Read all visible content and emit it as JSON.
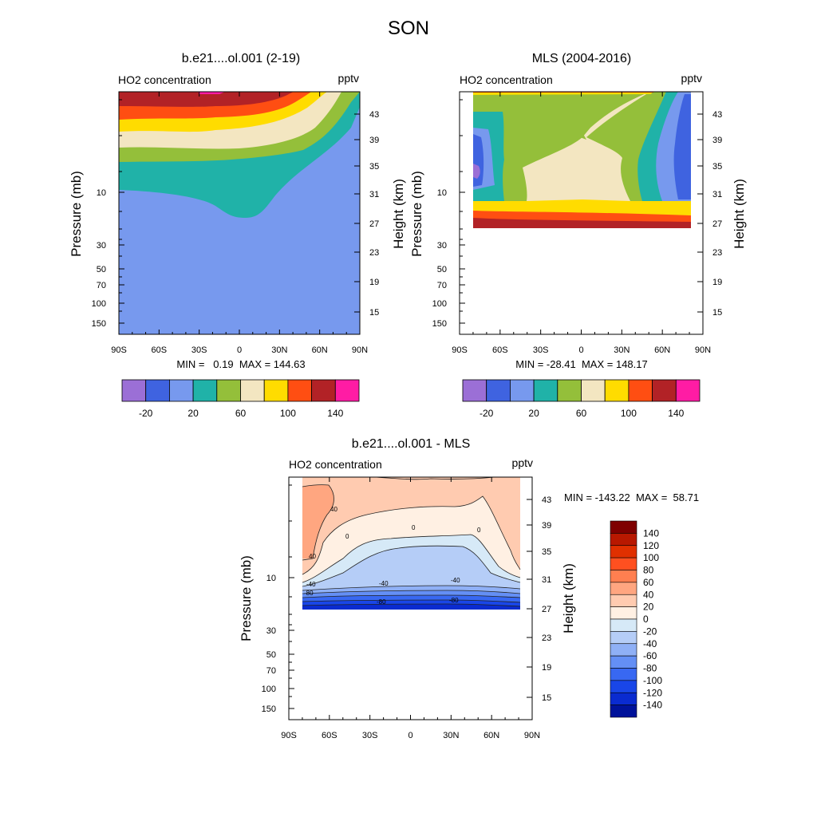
{
  "title": "SON",
  "chart_data": [
    {
      "type": "contour",
      "title": "b.e21....ol.001 (2-19)",
      "left_label": "HO2 concentration",
      "right_label": "pptv",
      "ylabel": "Pressure (mb)",
      "ylabel_right": "Height (km)",
      "xlim": [
        -90,
        90
      ],
      "x_ticks": [
        "90S",
        "60S",
        "30S",
        "0",
        "30N",
        "60N",
        "90N"
      ],
      "pressure_ticks": [
        "10",
        "30",
        "50",
        "70",
        "100",
        "150"
      ],
      "height_ticks": [
        "43",
        "39",
        "35",
        "31",
        "27",
        "23",
        "19",
        "15"
      ],
      "stats": "MIN =   0.19  MAX = 144.63",
      "colorbar": {
        "orientation": "horizontal",
        "colors": [
          "#9b6fd6",
          "#3f63e0",
          "#7799ee",
          "#20b2a8",
          "#94bf3a",
          "#f3e6c1",
          "#ffdc00",
          "#ff4e12",
          "#b22226",
          "#ff1ca4"
        ],
        "labels": [
          "-20",
          "20",
          "60",
          "100",
          "140"
        ]
      }
    },
    {
      "type": "contour",
      "title": "MLS (2004-2016)",
      "left_label": "HO2 concentration",
      "right_label": "pptv",
      "ylabel": "Pressure (mb)",
      "ylabel_right": "Height (km)",
      "xlim": [
        -90,
        90
      ],
      "x_ticks": [
        "90S",
        "60S",
        "30S",
        "0",
        "30N",
        "60N",
        "90N"
      ],
      "pressure_ticks": [
        "10",
        "30",
        "50",
        "70",
        "100",
        "150"
      ],
      "height_ticks": [
        "43",
        "39",
        "35",
        "31",
        "27",
        "23",
        "19",
        "15"
      ],
      "stats": "MIN = -28.41  MAX = 148.17",
      "colorbar": {
        "orientation": "horizontal",
        "colors": [
          "#9b6fd6",
          "#3f63e0",
          "#7799ee",
          "#20b2a8",
          "#94bf3a",
          "#f3e6c1",
          "#ffdc00",
          "#ff4e12",
          "#b22226",
          "#ff1ca4"
        ],
        "labels": [
          "-20",
          "20",
          "60",
          "100",
          "140"
        ]
      }
    },
    {
      "type": "contour",
      "title": "b.e21....ol.001 - MLS",
      "left_label": "HO2 concentration",
      "right_label": "pptv",
      "ylabel": "Pressure (mb)",
      "ylabel_right": "Height (km)",
      "xlim": [
        -90,
        90
      ],
      "x_ticks": [
        "90S",
        "60S",
        "30S",
        "0",
        "30N",
        "60N",
        "90N"
      ],
      "pressure_ticks": [
        "10",
        "30",
        "50",
        "70",
        "100",
        "150"
      ],
      "height_ticks": [
        "43",
        "39",
        "35",
        "31",
        "27",
        "23",
        "19",
        "15"
      ],
      "stats": "MIN = -143.22  MAX =  58.71",
      "contour_labels": [
        "40",
        "40",
        "0",
        "0",
        "0",
        "-40",
        "-40",
        "-40",
        "-80",
        "-80",
        "-80"
      ],
      "colorbar": {
        "orientation": "vertical",
        "colors": [
          "#7f0000",
          "#b81800",
          "#e03000",
          "#ff5020",
          "#ff7f50",
          "#ffa680",
          "#ffcbb0",
          "#fff0e3",
          "#d6e9f7",
          "#b5cdf7",
          "#8fb0f6",
          "#648ff5",
          "#3868f2",
          "#1946e8",
          "#0a2bd0",
          "#00129a"
        ],
        "labels": [
          "140",
          "120",
          "100",
          "80",
          "60",
          "40",
          "20",
          "0",
          "-20",
          "-40",
          "-60",
          "-80",
          "-100",
          "-120",
          "-140"
        ]
      }
    }
  ]
}
